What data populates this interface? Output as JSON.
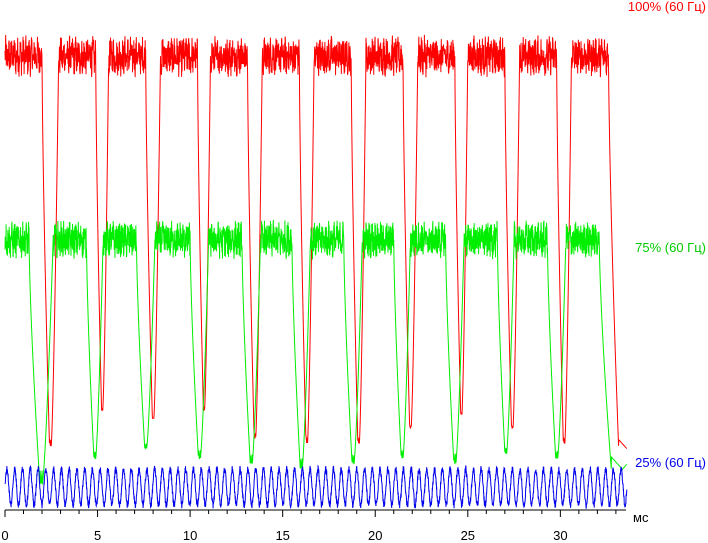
{
  "chart_data": {
    "type": "line",
    "title": "",
    "xlabel": "мс",
    "ylabel": "",
    "xlim": [
      0,
      33.6
    ],
    "ylim": [
      0,
      100
    ],
    "grid": false,
    "legend": "right-inline",
    "x_ticks": [
      "0",
      "5",
      "10",
      "15",
      "20",
      "25",
      "30"
    ],
    "x_tick_values": [
      0,
      5,
      10,
      15,
      20,
      25,
      30
    ],
    "series": [
      {
        "name": "100% (60 Гц)",
        "color": "#ff0000",
        "high_level": 89,
        "low_level": 12,
        "pulses": [
          {
            "high": [
              0,
              2.0
            ],
            "min": 12.5
          },
          {
            "high": [
              2.9,
              4.9
            ],
            "min": 20
          },
          {
            "high": [
              5.6,
              7.6
            ],
            "min": 18
          },
          {
            "high": [
              8.4,
              10.4
            ],
            "min": 20
          },
          {
            "high": [
              11.1,
              13.1
            ],
            "min": 14
          },
          {
            "high": [
              13.9,
              15.9
            ],
            "min": 13
          },
          {
            "high": [
              16.7,
              18.7
            ],
            "min": 13
          },
          {
            "high": [
              19.5,
              21.5
            ],
            "min": 16
          },
          {
            "high": [
              22.3,
              24.3
            ],
            "min": 19
          },
          {
            "high": [
              25.0,
              27.0
            ],
            "min": 16
          },
          {
            "high": [
              27.8,
              29.8
            ],
            "min": 13
          },
          {
            "high": [
              30.6,
              32.6
            ],
            "min": 12
          }
        ]
      },
      {
        "name": "75% (60 Гц)",
        "color": "#00ee00",
        "high_level": 53,
        "low_level": 10,
        "pulses": [
          {
            "high": [
              0,
              1.3
            ],
            "min": 5
          },
          {
            "high": [
              2.6,
              4.4
            ],
            "min": 10
          },
          {
            "high": [
              5.3,
              7.1
            ],
            "min": 12
          },
          {
            "high": [
              8.1,
              10.0
            ],
            "min": 10
          },
          {
            "high": [
              11.0,
              12.8
            ],
            "min": 9
          },
          {
            "high": [
              13.8,
              15.5
            ],
            "min": 8
          },
          {
            "high": [
              16.5,
              18.3
            ],
            "min": 9
          },
          {
            "high": [
              19.3,
              21.0
            ],
            "min": 10
          },
          {
            "high": [
              21.9,
              23.8
            ],
            "min": 9
          },
          {
            "high": [
              24.8,
              26.6
            ],
            "min": 11
          },
          {
            "high": [
              27.5,
              29.3
            ],
            "min": 10
          },
          {
            "high": [
              30.3,
              32.1
            ],
            "min": 8
          }
        ]
      },
      {
        "name": "25% (60 Гц)",
        "color": "#0000ee",
        "mean_level": 4.5,
        "amplitude": 3.5,
        "period_ms": 0.42
      }
    ]
  }
}
